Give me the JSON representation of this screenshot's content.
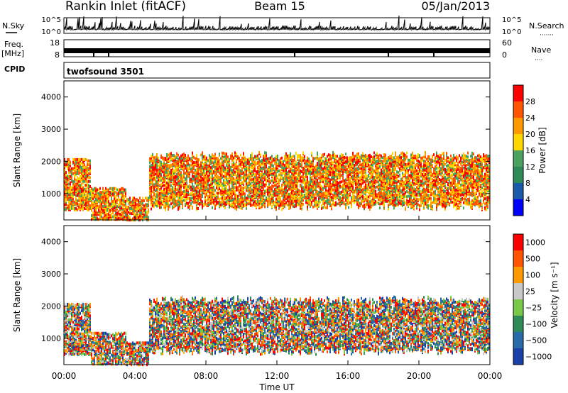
{
  "header": {
    "station": "Rankin Inlet (fitACF)",
    "beam": "Beam 15",
    "date": "05/Jan/2013"
  },
  "strip_labels": {
    "nsky": "N.Sky",
    "freq_line1": "Freq.",
    "freq_line2": "[MHz]",
    "cpid": "CPID",
    "nsearch": "N.Search",
    "nave": "Nave",
    "dots_long": "·······",
    "dots_short": "····"
  },
  "cpid_value": "twofsound 3501",
  "chart_data": [
    {
      "type": "line",
      "panel": "noise",
      "left_axis": {
        "name": "N.Sky",
        "ticks": [
          "10^5",
          "10^0"
        ]
      },
      "right_axis": {
        "name": "N.Search",
        "ticks": [
          "10^5",
          "10^0"
        ]
      },
      "x_range_ut_hours": [
        0,
        24
      ]
    },
    {
      "type": "line",
      "panel": "frequency-nave",
      "left_axis": {
        "name": "Freq. [MHz]",
        "ticks": [
          18,
          8
        ],
        "range": [
          8,
          18
        ]
      },
      "right_axis": {
        "name": "Nave",
        "ticks": [
          60,
          0
        ],
        "range": [
          0,
          60
        ]
      },
      "x_range_ut_hours": [
        0,
        24
      ]
    },
    {
      "type": "heatmap",
      "panel": "power",
      "ylabel": "Slant Range [km]",
      "ylim": [
        180,
        4500
      ],
      "yticks": [
        1000,
        2000,
        3000,
        4000
      ],
      "colorbar": {
        "label": "Power [dB]",
        "ticks": [
          4,
          8,
          12,
          16,
          20,
          24,
          28
        ],
        "colors": [
          "#0000ff",
          "#1a5aa8",
          "#2e8b57",
          "#4ca060",
          "#ffd700",
          "#ff9900",
          "#ff5500",
          "#ff0000"
        ]
      }
    },
    {
      "type": "heatmap",
      "panel": "velocity",
      "ylabel": "Slant Range [km]",
      "ylim": [
        180,
        4500
      ],
      "yticks": [
        1000,
        2000,
        3000,
        4000
      ],
      "xlabel": "Time UT",
      "xticks": [
        "00:00",
        "04:00",
        "08:00",
        "12:00",
        "16:00",
        "20:00",
        "00:00"
      ],
      "colorbar": {
        "label": "Velocity [m s⁻¹]",
        "ticks": [
          "1000",
          "500",
          "100",
          "25",
          "−25",
          "−100",
          "−500",
          "−1000"
        ],
        "colors": [
          "#1a3fa8",
          "#2a6aa8",
          "#2e8b57",
          "#7ac84a",
          "#c8c8c8",
          "#ff9900",
          "#ff5500",
          "#ff0000"
        ]
      }
    }
  ]
}
